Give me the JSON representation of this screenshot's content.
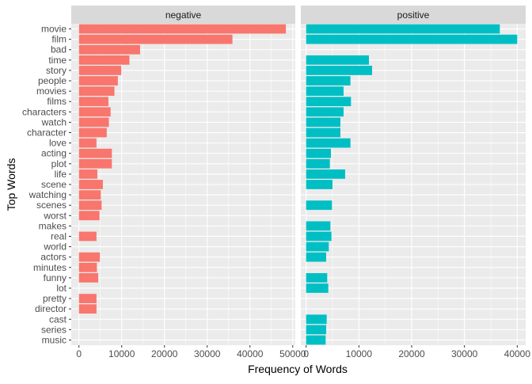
{
  "chart_data": {
    "type": "bar",
    "orientation": "horizontal",
    "xlabel": "Frequency of Words",
    "ylabel": "Top Words",
    "categories": [
      "movie",
      "film",
      "bad",
      "time",
      "story",
      "people",
      "movies",
      "films",
      "characters",
      "watch",
      "character",
      "love",
      "acting",
      "plot",
      "life",
      "scene",
      "watching",
      "scenes",
      "worst",
      "makes",
      "real",
      "world",
      "actors",
      "minutes",
      "funny",
      "lot",
      "pretty",
      "director",
      "cast",
      "series",
      "music"
    ],
    "facets": [
      {
        "name": "negative",
        "color": "#F8766D",
        "xlim": [
          -1800,
          50600
        ],
        "ticks": [
          0,
          10000,
          20000,
          30000,
          40000,
          50000
        ],
        "tick_labels": [
          "0",
          "10000",
          "20000",
          "30000",
          "40000",
          "50000"
        ],
        "values": [
          48400,
          35900,
          14300,
          11800,
          9900,
          9100,
          8300,
          6900,
          7400,
          7000,
          6500,
          4100,
          7700,
          7700,
          4300,
          5600,
          5100,
          5300,
          4800,
          null,
          4100,
          null,
          4900,
          4200,
          4500,
          null,
          4100,
          4100,
          null,
          null,
          null
        ]
      },
      {
        "name": "positive",
        "color": "#00BFC4",
        "xlim": [
          -1000,
          41600
        ],
        "ticks": [
          0,
          10000,
          20000,
          30000,
          40000
        ],
        "tick_labels": [
          "0",
          "10000",
          "20000",
          "30000",
          "40000"
        ],
        "values": [
          36700,
          40000,
          null,
          11900,
          12500,
          8400,
          7100,
          8500,
          7100,
          6500,
          6500,
          8400,
          4700,
          4500,
          7400,
          5000,
          null,
          4900,
          null,
          4600,
          4800,
          4300,
          3800,
          null,
          4000,
          4200,
          null,
          null,
          3900,
          3800,
          3700
        ]
      }
    ],
    "grid": true,
    "legend": "none"
  }
}
